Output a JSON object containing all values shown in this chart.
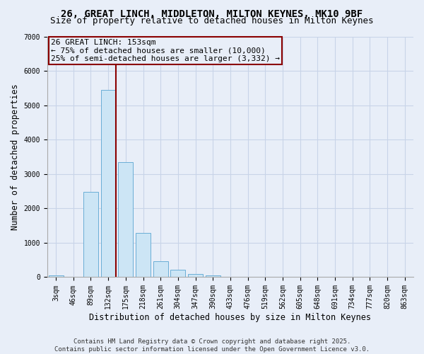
{
  "title_line1": "26, GREAT LINCH, MIDDLETON, MILTON KEYNES, MK10 9BF",
  "title_line2": "Size of property relative to detached houses in Milton Keynes",
  "xlabel": "Distribution of detached houses by size in Milton Keynes",
  "ylabel": "Number of detached properties",
  "bar_labels": [
    "3sqm",
    "46sqm",
    "89sqm",
    "132sqm",
    "175sqm",
    "218sqm",
    "261sqm",
    "304sqm",
    "347sqm",
    "390sqm",
    "433sqm",
    "476sqm",
    "519sqm",
    "562sqm",
    "605sqm",
    "648sqm",
    "691sqm",
    "734sqm",
    "777sqm",
    "820sqm",
    "863sqm"
  ],
  "bar_values": [
    60,
    0,
    2490,
    5450,
    3340,
    1280,
    460,
    220,
    100,
    50,
    0,
    0,
    0,
    0,
    0,
    0,
    0,
    0,
    0,
    0,
    0
  ],
  "bar_color": "#cce5f5",
  "bar_edge_color": "#6aaed6",
  "vline_x": 3.45,
  "vline_color": "#8b0000",
  "annotation_text": "26 GREAT LINCH: 153sqm\n← 75% of detached houses are smaller (10,000)\n25% of semi-detached houses are larger (3,332) →",
  "annotation_box_color": "#8b0000",
  "ylim": [
    0,
    7000
  ],
  "yticks": [
    0,
    1000,
    2000,
    3000,
    4000,
    5000,
    6000,
    7000
  ],
  "grid_color": "#c8d4e8",
  "background_color": "#e8eef8",
  "footer_line1": "Contains HM Land Registry data © Crown copyright and database right 2025.",
  "footer_line2": "Contains public sector information licensed under the Open Government Licence v3.0.",
  "title_fontsize": 10,
  "subtitle_fontsize": 9,
  "axis_label_fontsize": 8.5,
  "tick_fontsize": 7,
  "annotation_fontsize": 8,
  "footer_fontsize": 6.5
}
